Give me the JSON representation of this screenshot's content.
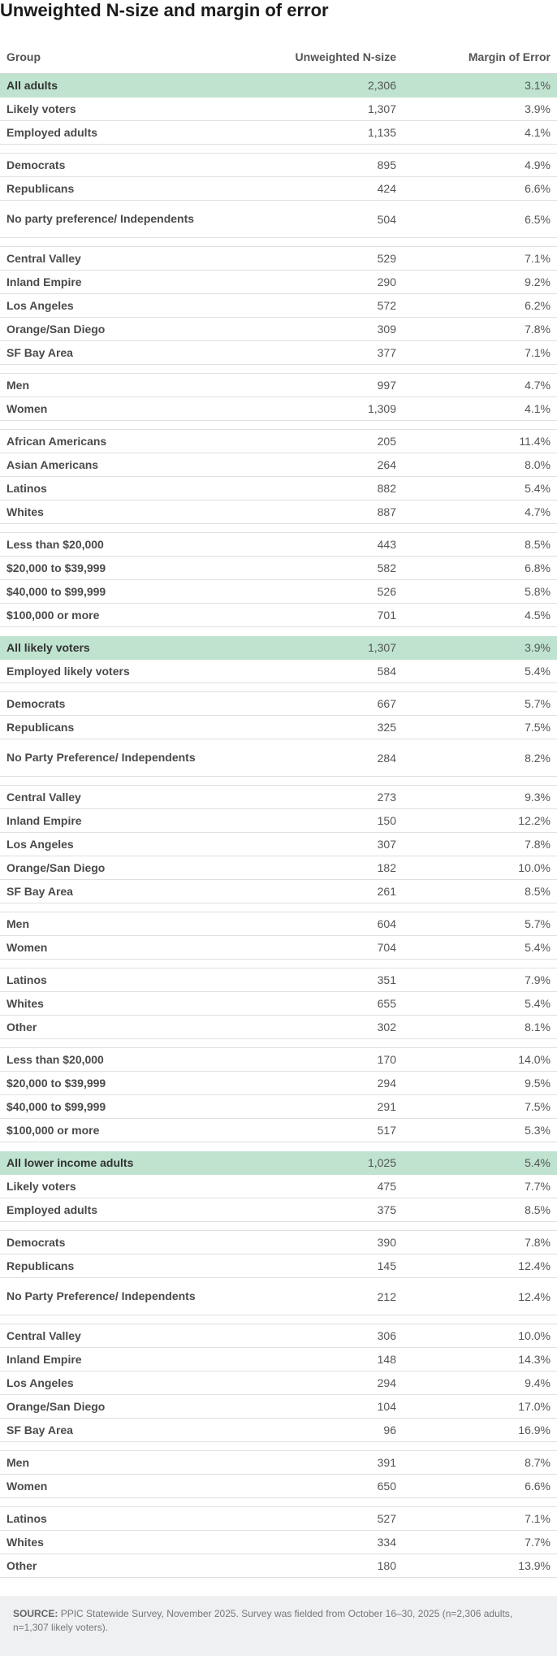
{
  "title": "Unweighted N-size and margin of error",
  "headers": {
    "group": "Group",
    "n": "Unweighted N-size",
    "moe": "Margin of Error"
  },
  "sections": [
    [
      [
        {
          "group": "All adults",
          "n": "2,306",
          "moe": "3.1%",
          "hl": true
        },
        {
          "group": "Likely voters",
          "n": "1,307",
          "moe": "3.9%"
        },
        {
          "group": "Employed adults",
          "n": "1,135",
          "moe": "4.1%"
        }
      ],
      [
        {
          "group": "Democrats",
          "n": "895",
          "moe": "4.9%"
        },
        {
          "group": "Republicans",
          "n": "424",
          "moe": "6.6%"
        },
        {
          "group": "No party preference/ Independents",
          "n": "504",
          "moe": "6.5%",
          "tall": true
        }
      ],
      [
        {
          "group": "Central Valley",
          "n": "529",
          "moe": "7.1%"
        },
        {
          "group": "Inland Empire",
          "n": "290",
          "moe": "9.2%"
        },
        {
          "group": "Los Angeles",
          "n": "572",
          "moe": "6.2%"
        },
        {
          "group": "Orange/San Diego",
          "n": "309",
          "moe": "7.8%"
        },
        {
          "group": "SF Bay Area",
          "n": "377",
          "moe": "7.1%"
        }
      ],
      [
        {
          "group": "Men",
          "n": "997",
          "moe": "4.7%"
        },
        {
          "group": "Women",
          "n": "1,309",
          "moe": "4.1%"
        }
      ],
      [
        {
          "group": "African Americans",
          "n": "205",
          "moe": "11.4%"
        },
        {
          "group": "Asian Americans",
          "n": "264",
          "moe": "8.0%"
        },
        {
          "group": "Latinos",
          "n": "882",
          "moe": "5.4%"
        },
        {
          "group": "Whites",
          "n": "887",
          "moe": "4.7%"
        }
      ],
      [
        {
          "group": "Less than $20,000",
          "n": "443",
          "moe": "8.5%"
        },
        {
          "group": "$20,000 to $39,999",
          "n": "582",
          "moe": "6.8%"
        },
        {
          "group": "$40,000 to $99,999",
          "n": "526",
          "moe": "5.8%"
        },
        {
          "group": "$100,000 or more",
          "n": "701",
          "moe": "4.5%"
        }
      ]
    ],
    [
      [
        {
          "group": "All likely voters",
          "n": "1,307",
          "moe": "3.9%",
          "hl": true
        },
        {
          "group": "Employed likely voters",
          "n": "584",
          "moe": "5.4%"
        }
      ],
      [
        {
          "group": "Democrats",
          "n": "667",
          "moe": "5.7%"
        },
        {
          "group": "Republicans",
          "n": "325",
          "moe": "7.5%"
        },
        {
          "group": "No Party Preference/ Independents",
          "n": "284",
          "moe": "8.2%",
          "tall": true
        }
      ],
      [
        {
          "group": "Central Valley",
          "n": "273",
          "moe": "9.3%"
        },
        {
          "group": "Inland Empire",
          "n": "150",
          "moe": "12.2%"
        },
        {
          "group": "Los Angeles",
          "n": "307",
          "moe": "7.8%"
        },
        {
          "group": "Orange/San Diego",
          "n": "182",
          "moe": "10.0%"
        },
        {
          "group": "SF Bay Area",
          "n": "261",
          "moe": "8.5%"
        }
      ],
      [
        {
          "group": "Men",
          "n": "604",
          "moe": "5.7%"
        },
        {
          "group": "Women",
          "n": "704",
          "moe": "5.4%"
        }
      ],
      [
        {
          "group": "Latinos",
          "n": "351",
          "moe": "7.9%"
        },
        {
          "group": "Whites",
          "n": "655",
          "moe": "5.4%"
        },
        {
          "group": "Other",
          "n": "302",
          "moe": "8.1%"
        }
      ],
      [
        {
          "group": "Less than $20,000",
          "n": "170",
          "moe": "14.0%"
        },
        {
          "group": "$20,000 to $39,999",
          "n": "294",
          "moe": "9.5%"
        },
        {
          "group": "$40,000 to $99,999",
          "n": "291",
          "moe": "7.5%"
        },
        {
          "group": "$100,000 or more",
          "n": "517",
          "moe": "5.3%"
        }
      ]
    ],
    [
      [
        {
          "group": "All lower income adults",
          "n": "1,025",
          "moe": "5.4%",
          "hl": true
        },
        {
          "group": "Likely voters",
          "n": "475",
          "moe": "7.7%"
        },
        {
          "group": "Employed adults",
          "n": "375",
          "moe": "8.5%"
        }
      ],
      [
        {
          "group": "Democrats",
          "n": "390",
          "moe": "7.8%"
        },
        {
          "group": "Republicans",
          "n": "145",
          "moe": "12.4%"
        },
        {
          "group": "No Party Preference/ Independents",
          "n": "212",
          "moe": "12.4%",
          "tall": true
        }
      ],
      [
        {
          "group": "Central Valley",
          "n": "306",
          "moe": "10.0%"
        },
        {
          "group": "Inland Empire",
          "n": "148",
          "moe": "14.3%"
        },
        {
          "group": "Los Angeles",
          "n": "294",
          "moe": "9.4%"
        },
        {
          "group": "Orange/San Diego",
          "n": "104",
          "moe": "17.0%"
        },
        {
          "group": "SF Bay Area",
          "n": "96",
          "moe": "16.9%"
        }
      ],
      [
        {
          "group": "Men",
          "n": "391",
          "moe": "8.7%"
        },
        {
          "group": "Women",
          "n": "650",
          "moe": "6.6%"
        }
      ],
      [
        {
          "group": "Latinos",
          "n": "527",
          "moe": "7.1%"
        },
        {
          "group": "Whites",
          "n": "334",
          "moe": "7.7%"
        },
        {
          "group": "Other",
          "n": "180",
          "moe": "13.9%"
        }
      ]
    ]
  ],
  "source": {
    "label": "SOURCE:",
    "text": "PPIC Statewide Survey, November 2025. Survey was fielded from October 16–30, 2025 (n=2,306 adults, n=1,307 likely voters)."
  }
}
